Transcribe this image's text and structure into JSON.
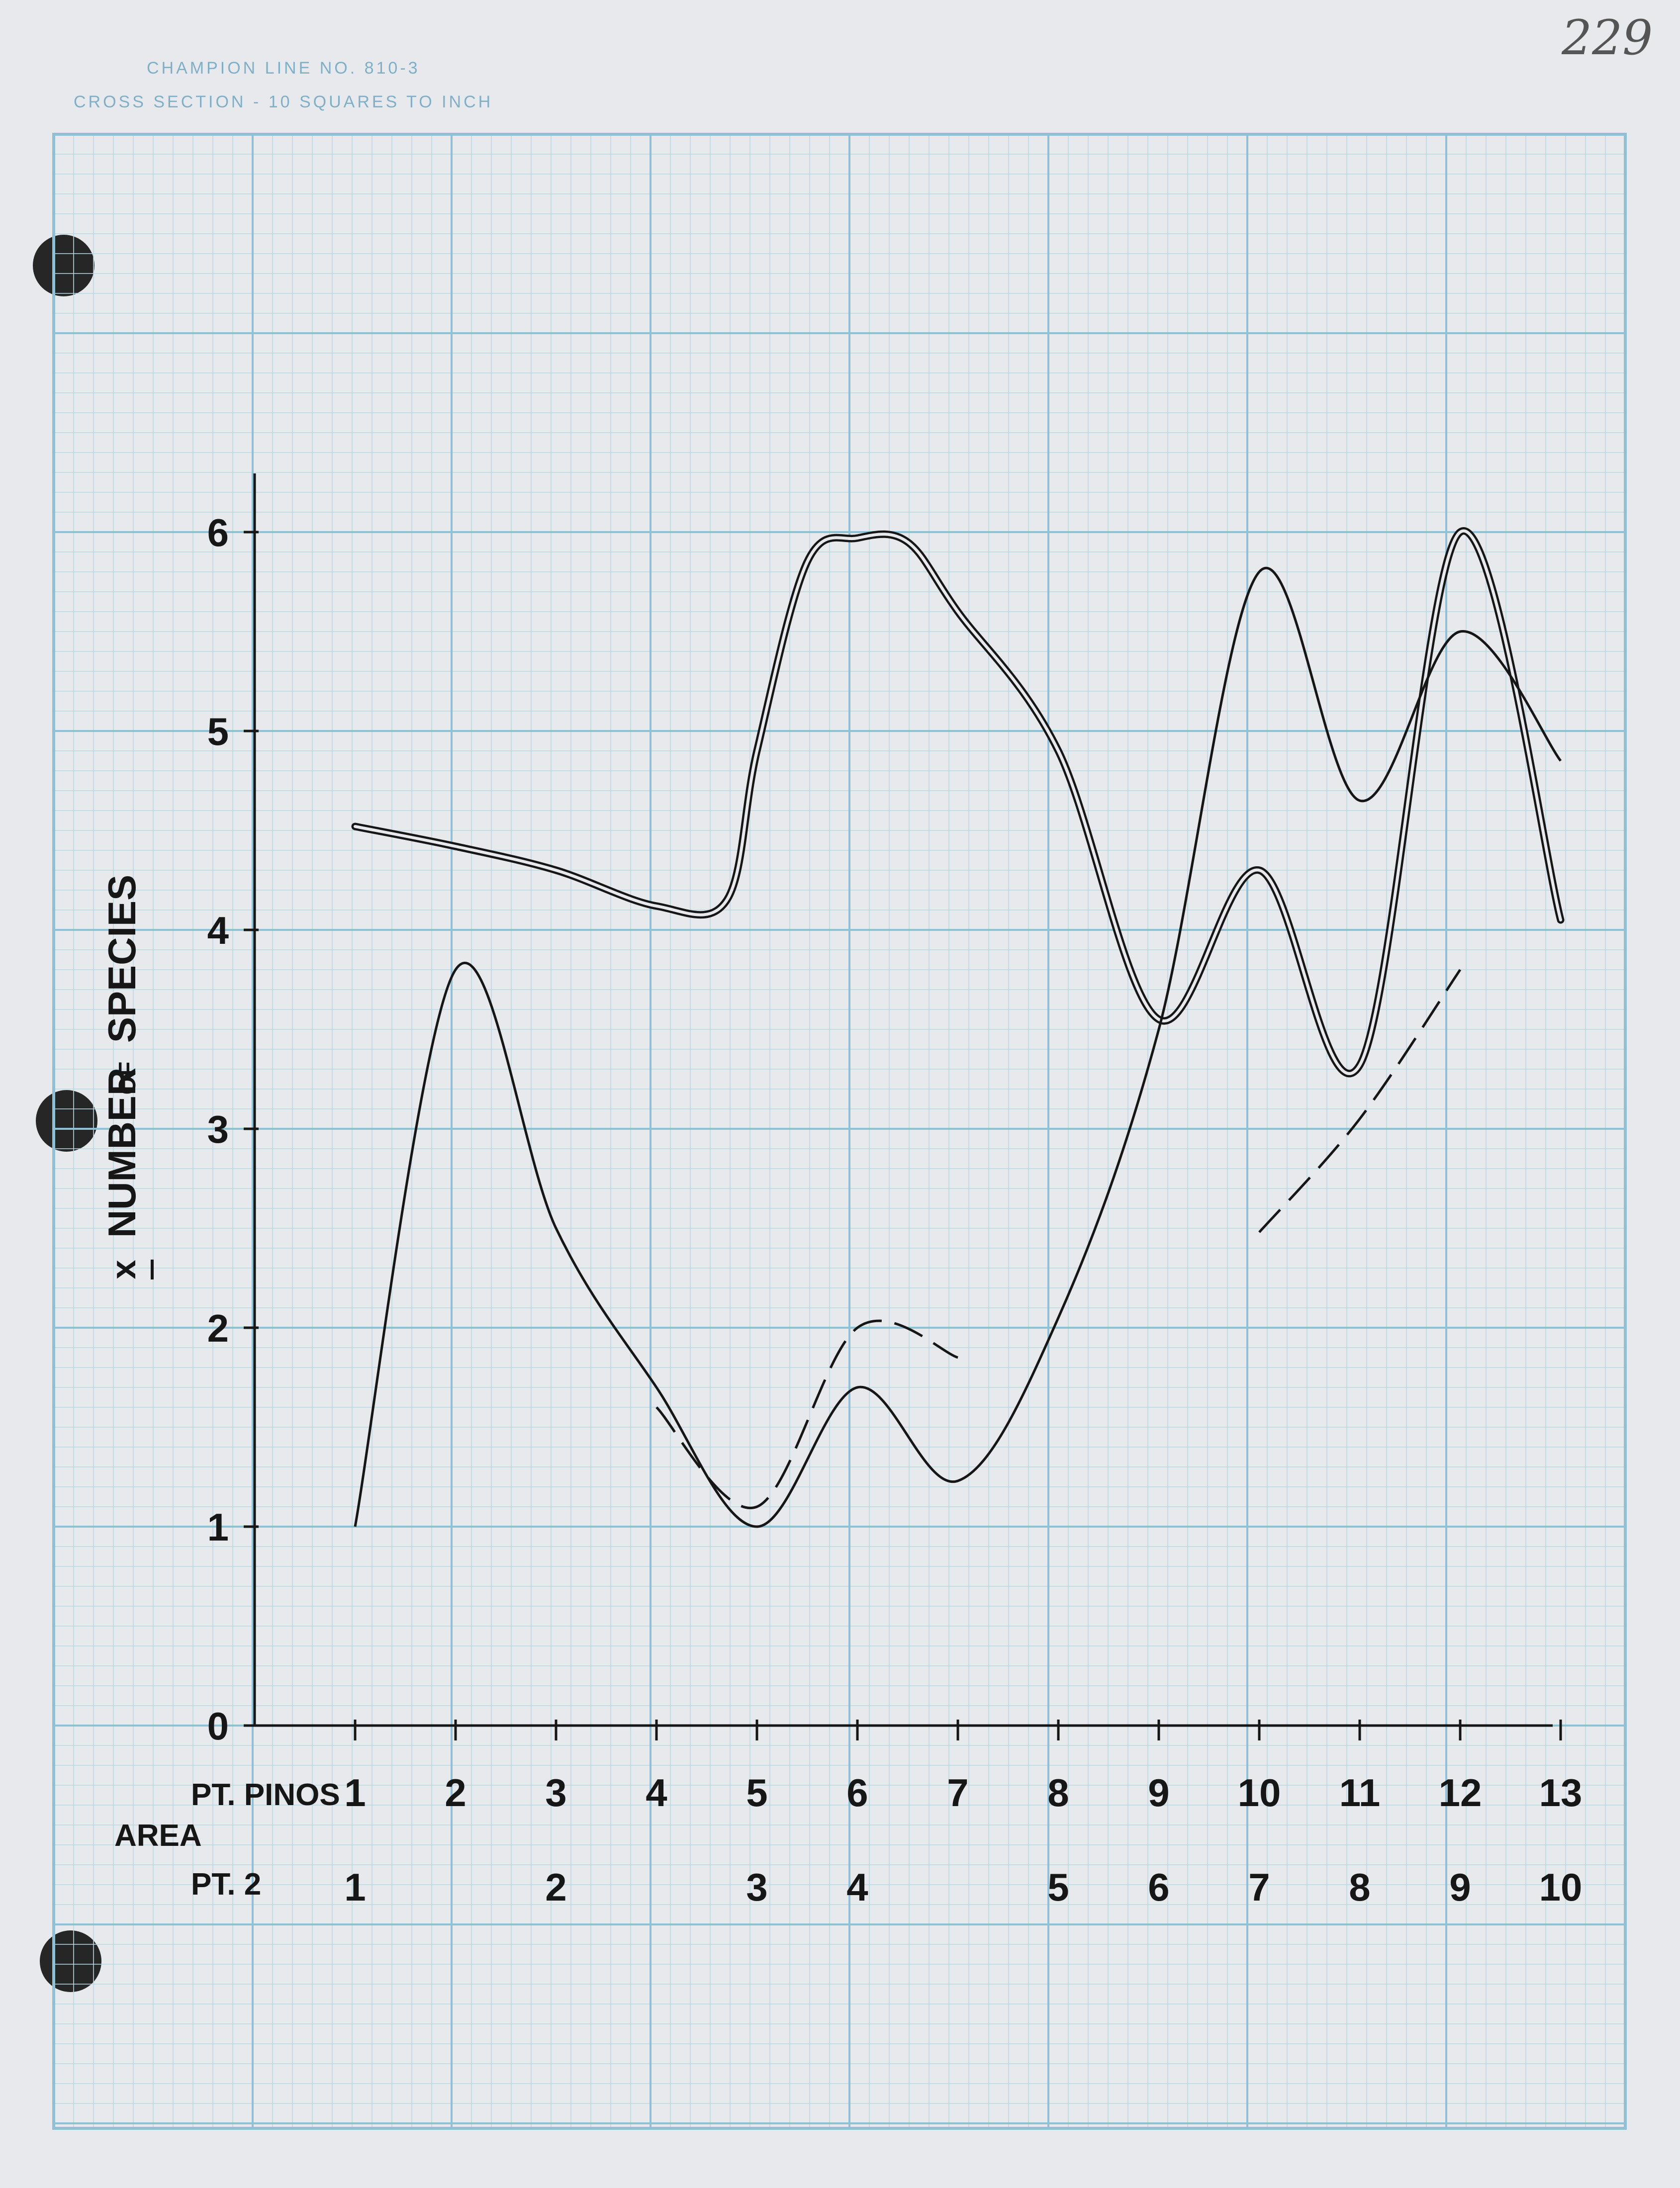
{
  "header": {
    "line1": "CHAMPION LINE NO. 810-3",
    "line2": "CROSS SECTION - 10 SQUARES TO INCH"
  },
  "page_number": "229",
  "colors": {
    "paper": "#e7e9ec",
    "grid_major": "#8fc0d4",
    "grid_minor": "#bcd7e2",
    "ink": "#161616"
  },
  "chart_data": {
    "type": "line",
    "ylabel": "X̄ NUMBER OF SPECIES",
    "ylabel_parts": {
      "symbol": "x",
      "number": "NUMBER",
      "of": "OF",
      "species": "SPECIES"
    },
    "ylim": [
      0,
      6.3
    ],
    "xlim": [
      0,
      13
    ],
    "yticks": [
      0,
      1,
      2,
      3,
      4,
      5,
      6
    ],
    "grid": true,
    "x_axis_rows": {
      "area_label": "AREA",
      "pt_pinos": {
        "label": "PT. PINOS",
        "ticks": [
          {
            "x": 1,
            "label": "1"
          },
          {
            "x": 2,
            "label": "2"
          },
          {
            "x": 3,
            "label": "3"
          },
          {
            "x": 4,
            "label": "4"
          },
          {
            "x": 5,
            "label": "5"
          },
          {
            "x": 6,
            "label": "6"
          },
          {
            "x": 7,
            "label": "7"
          },
          {
            "x": 8,
            "label": "8"
          },
          {
            "x": 9,
            "label": "9"
          },
          {
            "x": 10,
            "label": "10"
          },
          {
            "x": 11,
            "label": "11"
          },
          {
            "x": 12,
            "label": "12"
          },
          {
            "x": 13,
            "label": "13"
          }
        ]
      },
      "pt2": {
        "label": "PT. 2",
        "ticks": [
          {
            "x": 1,
            "label": "1"
          },
          {
            "x": 3,
            "label": "2"
          },
          {
            "x": 5,
            "label": "3"
          },
          {
            "x": 6,
            "label": "4"
          },
          {
            "x": 8,
            "label": "5"
          },
          {
            "x": 9,
            "label": "6"
          },
          {
            "x": 10,
            "label": "7"
          },
          {
            "x": 11,
            "label": "8"
          },
          {
            "x": 12,
            "label": "9"
          },
          {
            "x": 13,
            "label": "10"
          }
        ]
      }
    },
    "series": [
      {
        "style": "double",
        "points": [
          [
            1,
            4.52
          ],
          [
            2,
            4.42
          ],
          [
            3,
            4.3
          ],
          [
            4,
            4.12
          ],
          [
            4.7,
            4.15
          ],
          [
            5,
            4.9
          ],
          [
            5.5,
            5.85
          ],
          [
            6,
            5.97
          ],
          [
            6.5,
            5.95
          ],
          [
            7,
            5.6
          ],
          [
            8,
            4.9
          ],
          [
            9,
            3.55
          ],
          [
            10,
            4.3
          ],
          [
            11,
            3.32
          ],
          [
            12,
            6.0
          ],
          [
            13,
            4.05
          ]
        ]
      },
      {
        "style": "solid",
        "points": [
          [
            1,
            1.0
          ],
          [
            2,
            3.8
          ],
          [
            3,
            2.5
          ],
          [
            4,
            1.7
          ],
          [
            5,
            1.0
          ],
          [
            6,
            1.7
          ],
          [
            7,
            1.23
          ],
          [
            8,
            2.05
          ],
          [
            9,
            3.5
          ],
          [
            10,
            5.8
          ],
          [
            11,
            4.65
          ],
          [
            12,
            5.5
          ],
          [
            13,
            4.85
          ]
        ]
      },
      {
        "style": "dashed",
        "points": [
          [
            4,
            1.6
          ],
          [
            5,
            1.1
          ],
          [
            6,
            2.0
          ],
          [
            7,
            1.85
          ]
        ]
      },
      {
        "style": "dashed",
        "points": [
          [
            10,
            2.48
          ],
          [
            11,
            3.05
          ],
          [
            12,
            3.8
          ]
        ]
      }
    ]
  }
}
